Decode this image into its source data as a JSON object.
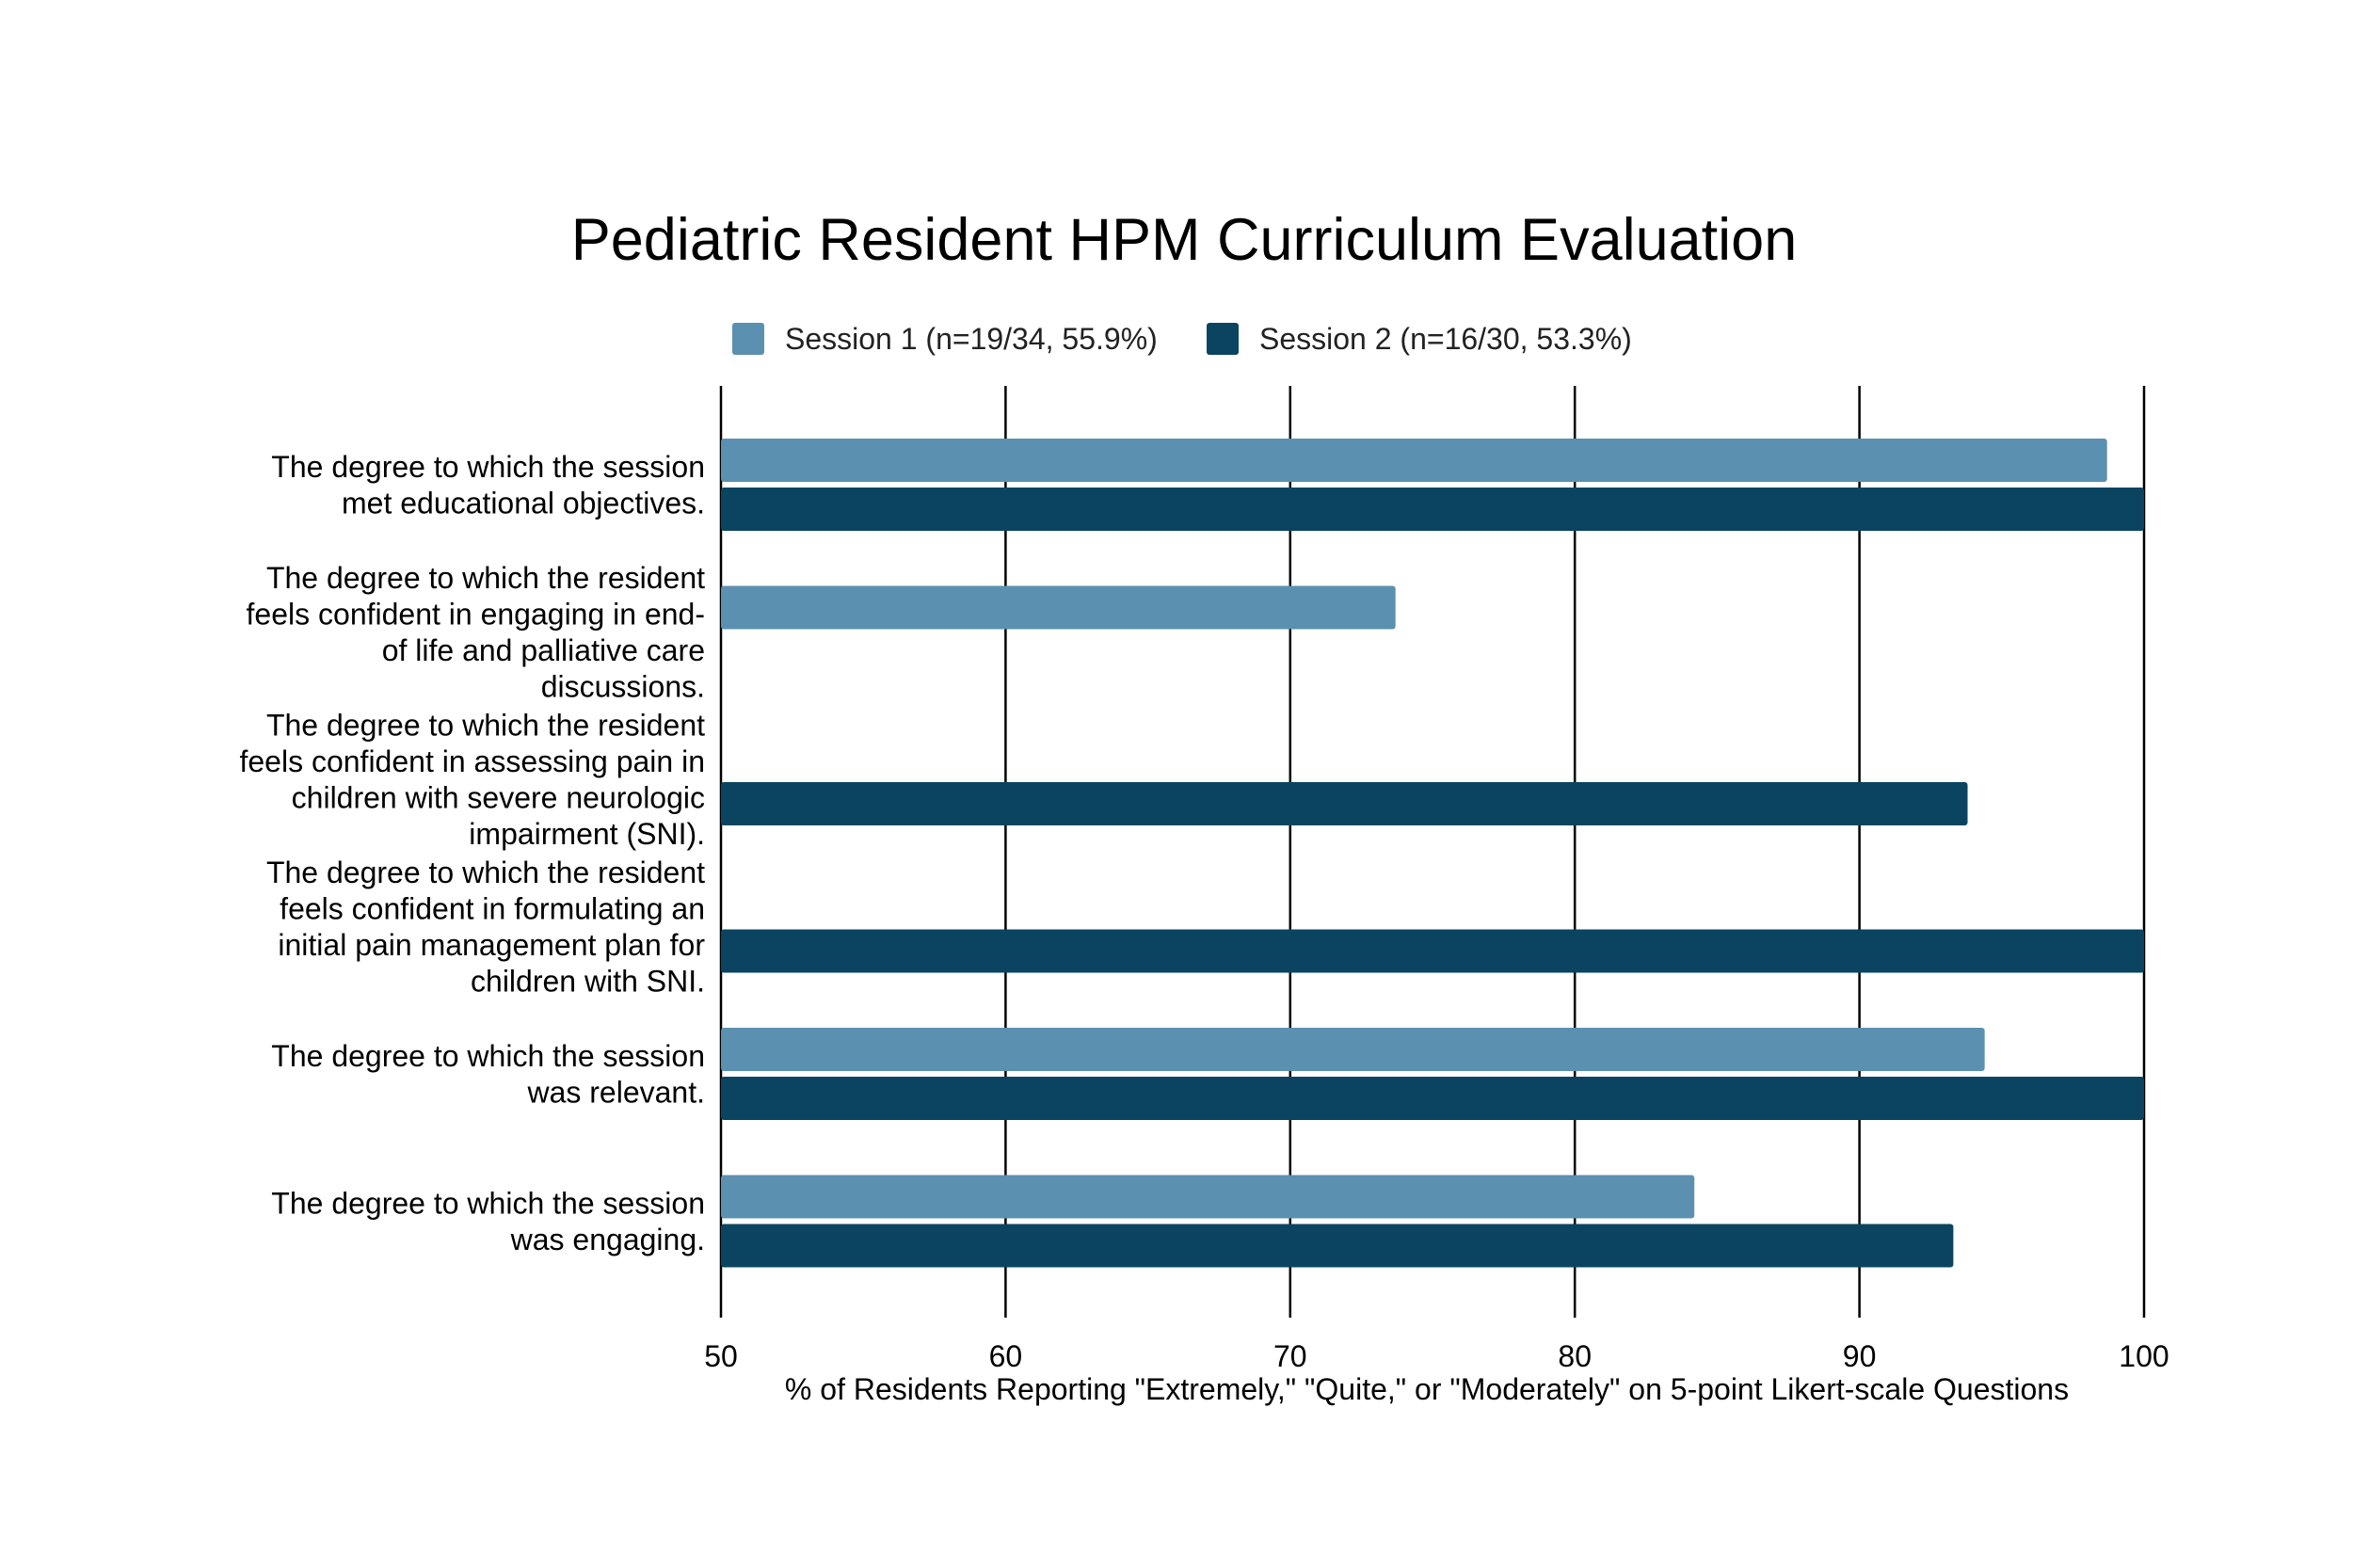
{
  "chart_data": {
    "type": "bar",
    "orientation": "horizontal",
    "title": "Pediatric Resident HPM Curriculum Evaluation",
    "xlabel": "% of Residents Reporting \"Extremely,\" \"Quite,\" or \"Moderately\" on 5-point Likert-scale Questions",
    "ylabel": "",
    "xlim": [
      50,
      100
    ],
    "xticks": [
      50,
      60,
      70,
      80,
      90,
      100
    ],
    "grid": "vertical",
    "legend_position": "top",
    "categories": [
      [
        "The degree to which the session",
        "met educational objectives."
      ],
      [
        "The degree to which the resident",
        "feels confident in engaging in end-",
        "of life and palliative care",
        "discussions."
      ],
      [
        "The degree to which the resident",
        "feels confident in assessing pain in",
        "children with severe neurologic",
        "impairment (SNI)."
      ],
      [
        "The degree to which the resident",
        "feels confident in formulating an",
        "initial pain management plan for",
        "children with SNI."
      ],
      [
        "The degree to which the session",
        "was relevant."
      ],
      [
        "The degree to which the session",
        "was engaging."
      ]
    ],
    "series": [
      {
        "name": "Session 1 (n=19/34, 55.9%)",
        "color": "#5b90b0",
        "values": [
          98.7,
          73.7,
          null,
          null,
          94.4,
          84.2
        ]
      },
      {
        "name": "Session 2 (n=16/30, 53.3%)",
        "color": "#0a4461",
        "values": [
          100,
          null,
          93.8,
          100,
          100,
          93.3
        ]
      }
    ]
  }
}
